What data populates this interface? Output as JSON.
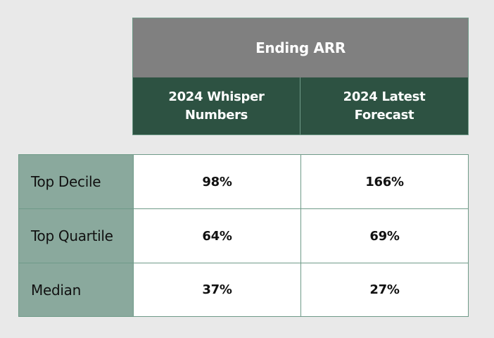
{
  "table": {
    "super_header": "Ending ARR",
    "columns": [
      {
        "line1": "2024 Whisper",
        "line2": "Numbers"
      },
      {
        "line1": "2024 Latest",
        "line2": "Forecast"
      }
    ],
    "rows": [
      {
        "label": "Top Decile",
        "values": [
          "98%",
          "166%"
        ]
      },
      {
        "label": "Top Quartile",
        "values": [
          "64%",
          "69%"
        ]
      },
      {
        "label": "Median",
        "values": [
          "37%",
          "27%"
        ]
      }
    ]
  },
  "colors": {
    "background": "#e9e9e9",
    "super_header_bg": "#808080",
    "column_header_bg": "#2d5242",
    "row_label_bg": "#8aa99d",
    "border": "#6f9a88"
  }
}
